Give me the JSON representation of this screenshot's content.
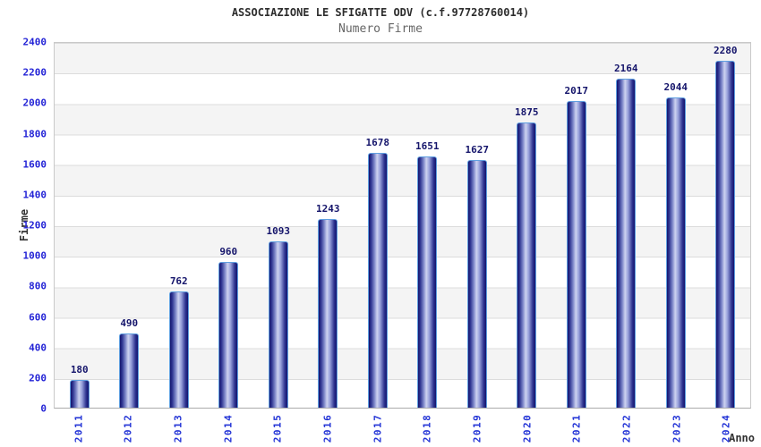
{
  "header": {
    "title": "ASSOCIAZIONE LE SFIGATTE ODV (c.f.97728760014)",
    "subtitle": "Numero Firme"
  },
  "chart_data": {
    "type": "bar",
    "title": "ASSOCIAZIONE LE SFIGATTE ODV (c.f.97728760014)",
    "subtitle": "Numero Firme",
    "xlabel": "Anno",
    "ylabel": "Firme",
    "categories": [
      "2011",
      "2012",
      "2013",
      "2014",
      "2015",
      "2016",
      "2017",
      "2018",
      "2019",
      "2020",
      "2021",
      "2022",
      "2023",
      "2024"
    ],
    "values": [
      180,
      490,
      762,
      960,
      1093,
      1243,
      1678,
      1651,
      1627,
      1875,
      2017,
      2164,
      2044,
      2280
    ],
    "ylim": [
      0,
      2400
    ],
    "y_tick_step": 200,
    "grid": "horizontal-bands-alternating",
    "legend": "none",
    "colors": {
      "bar_edge": "#14146e",
      "bar_highlight": "#cdd2f0",
      "bar_border": "#5f9fe0",
      "value_label": "#15156b",
      "tick_label": "#2424d6",
      "band_gray": "#f4f4f4",
      "gridline": "#dcdcdc",
      "title_text": "#2d2d2d",
      "subtitle_text": "#666666"
    }
  }
}
